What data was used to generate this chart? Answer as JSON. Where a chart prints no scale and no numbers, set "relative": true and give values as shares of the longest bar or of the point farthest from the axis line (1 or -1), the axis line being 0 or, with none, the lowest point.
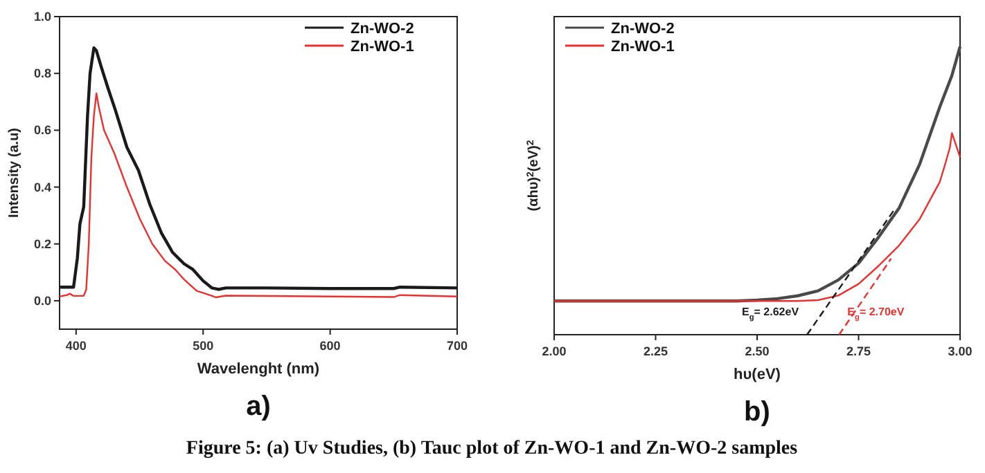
{
  "chart_data": [
    {
      "type": "line",
      "title": "a)",
      "xlabel": "Wavelenght (nm)",
      "ylabel": "Intensity (a.u)",
      "xlim": [
        387,
        700
      ],
      "xticks": [
        400,
        500,
        600,
        700
      ],
      "ylim": [
        -0.1,
        1.0
      ],
      "yticks": [
        {
          "value": 0,
          "label": "0.0"
        },
        0.2,
        0.4,
        0.6,
        0.8,
        {
          "value": 1,
          "label": "1.0"
        }
      ],
      "legend": "top right",
      "series": [
        {
          "name": "Zn-WO-2",
          "color": "#1a1a1a",
          "x": [
            387,
            398,
            401,
            403,
            406,
            409,
            411,
            414,
            416,
            420,
            425,
            431,
            440,
            449,
            458,
            467,
            476,
            485,
            492,
            500,
            507,
            512,
            518,
            550,
            600,
            650,
            655,
            700
          ],
          "values": [
            0.048,
            0.048,
            0.15,
            0.27,
            0.33,
            0.65,
            0.8,
            0.89,
            0.88,
            0.82,
            0.75,
            0.67,
            0.54,
            0.46,
            0.34,
            0.24,
            0.17,
            0.13,
            0.11,
            0.07,
            0.045,
            0.04,
            0.045,
            0.045,
            0.043,
            0.043,
            0.048,
            0.045
          ]
        },
        {
          "name": "Zn-WO-1",
          "color": "#e8312f",
          "x": [
            387,
            393,
            395,
            398,
            406,
            408,
            410,
            412,
            414,
            416,
            418,
            422,
            430,
            440,
            450,
            460,
            470,
            478,
            485,
            495,
            505,
            510,
            518,
            600,
            650,
            655,
            700
          ],
          "values": [
            0.015,
            0.02,
            0.025,
            0.017,
            0.017,
            0.04,
            0.2,
            0.5,
            0.65,
            0.73,
            0.68,
            0.6,
            0.52,
            0.4,
            0.29,
            0.2,
            0.14,
            0.11,
            0.075,
            0.035,
            0.02,
            0.012,
            0.018,
            0.015,
            0.013,
            0.02,
            0.015
          ]
        }
      ]
    },
    {
      "type": "line",
      "title": "b)",
      "xlabel": "hυ(eV)",
      "ylabel": "(αhυ)$^{2}$(eV)$^{2}$",
      "relative": true,
      "xlim": [
        2.0,
        3.0
      ],
      "xticks": [
        {
          "value": 2,
          "label": "2.00"
        },
        {
          "value": 2.25,
          "label": "2.25"
        },
        {
          "value": 2.5,
          "label": "2.50"
        },
        {
          "value": 2.75,
          "label": "2.75"
        },
        {
          "value": 3,
          "label": "3.00"
        }
      ],
      "legend": "top left",
      "series": [
        {
          "name": "Zn-WO-2",
          "color": "#4a4a4a",
          "x": [
            2.0,
            2.45,
            2.5,
            2.55,
            2.6,
            2.65,
            2.7,
            2.75,
            2.8,
            2.85,
            2.9,
            2.95,
            2.98,
            3.0
          ],
          "values": [
            0.117,
            0.117,
            0.12,
            0.125,
            0.135,
            0.152,
            0.19,
            0.248,
            0.34,
            0.44,
            0.59,
            0.79,
            0.9,
            1.0
          ]
        },
        {
          "name": "Zn-WO-1",
          "color": "#e8312f",
          "x": [
            2.0,
            2.6,
            2.65,
            2.7,
            2.75,
            2.8,
            2.85,
            2.9,
            2.95,
            2.965,
            2.975,
            2.98,
            3.0
          ],
          "values": [
            0.117,
            0.117,
            0.12,
            0.136,
            0.176,
            0.24,
            0.31,
            0.4,
            0.53,
            0.6,
            0.65,
            0.7,
            0.616
          ]
        },
        {
          "type": "line",
          "line_style": "dashed",
          "color": "#1a1a1a",
          "x": [
            2.623,
            2.841
          ],
          "values": [
            0,
            0.44
          ]
        },
        {
          "type": "line",
          "line_style": "dashed",
          "color": "#e8312f",
          "x": [
            2.702,
            2.83
          ],
          "values": [
            0,
            0.264
          ]
        }
      ],
      "annotations": [
        "E$_{g}$= 2.62eV",
        "E$_{g}$= 2.70eV",
        "Figure 5: (a) Uv Studies, (b) Tauc plot of Zn-WO-1 and Zn-WO-2 samples"
      ]
    }
  ]
}
